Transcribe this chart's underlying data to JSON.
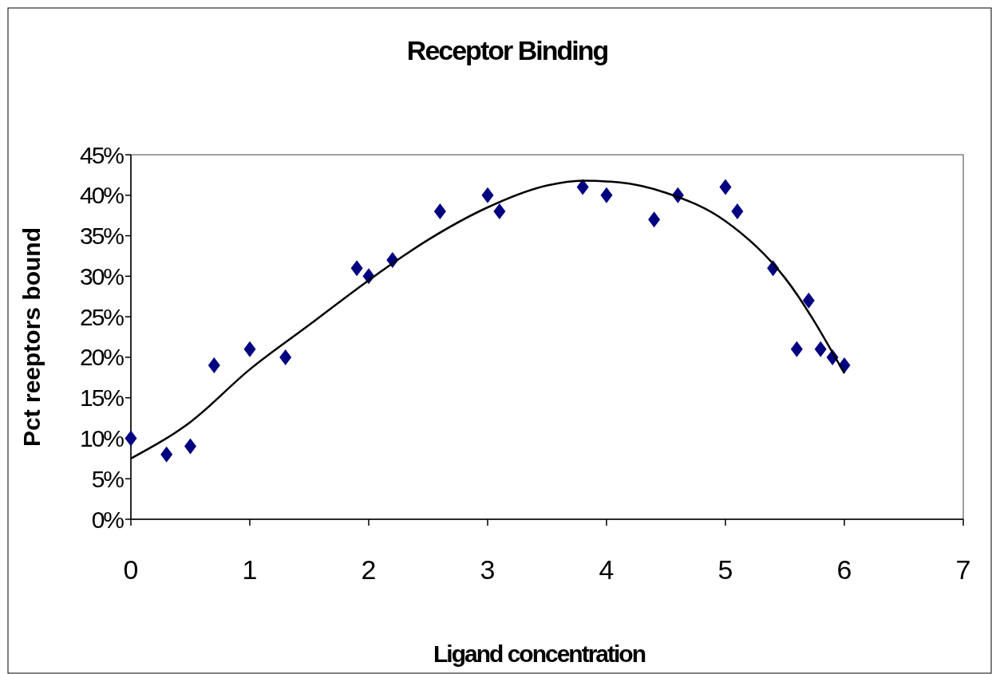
{
  "chart_data": {
    "type": "scatter",
    "title": "Receptor Binding",
    "xlabel": "Ligand concentration",
    "ylabel": "Pct reeptors bound",
    "xlim": [
      0,
      7
    ],
    "xticks": [
      0,
      1,
      2,
      3,
      4,
      5,
      6,
      7
    ],
    "ylim": [
      0,
      45
    ],
    "yticks": [
      {
        "value": 0,
        "label": "0%"
      },
      {
        "value": 5,
        "label": "5%"
      },
      {
        "value": 10,
        "label": "10%"
      },
      {
        "value": 15,
        "label": "15%"
      },
      {
        "value": 20,
        "label": "20%"
      },
      {
        "value": 25,
        "label": "25%"
      },
      {
        "value": 30,
        "label": "30%"
      },
      {
        "value": 35,
        "label": "35%"
      },
      {
        "value": 40,
        "label": "40%"
      },
      {
        "value": 45,
        "label": "45%"
      }
    ],
    "series": [
      {
        "marker": "diamond",
        "color": "#000080",
        "x": [
          0,
          0.3,
          0.5,
          0.7,
          1,
          1.3,
          1.9,
          2,
          2.2,
          2.6,
          3,
          3.1,
          3.8,
          4,
          4.4,
          4.6,
          5,
          5.1,
          5.4,
          5.6,
          5.7,
          5.8,
          5.9,
          6
        ],
        "values": [
          10,
          8,
          9,
          19,
          21,
          20,
          31,
          30,
          32,
          38,
          40,
          38,
          41,
          40,
          37,
          40,
          41,
          38,
          31,
          21,
          27,
          21,
          20,
          19
        ]
      },
      {
        "type": "line",
        "marker": "none",
        "color": "#000000",
        "x": [
          0,
          0.5,
          1,
          1.5,
          2,
          2.5,
          3,
          3.5,
          3.8,
          4.1,
          4.5,
          5,
          5.5,
          6
        ],
        "values": [
          7.5,
          12,
          18.5,
          24,
          29.5,
          34.5,
          38.5,
          41.2,
          41.8,
          41.6,
          40.3,
          36.8,
          29.8,
          18
        ]
      }
    ]
  }
}
